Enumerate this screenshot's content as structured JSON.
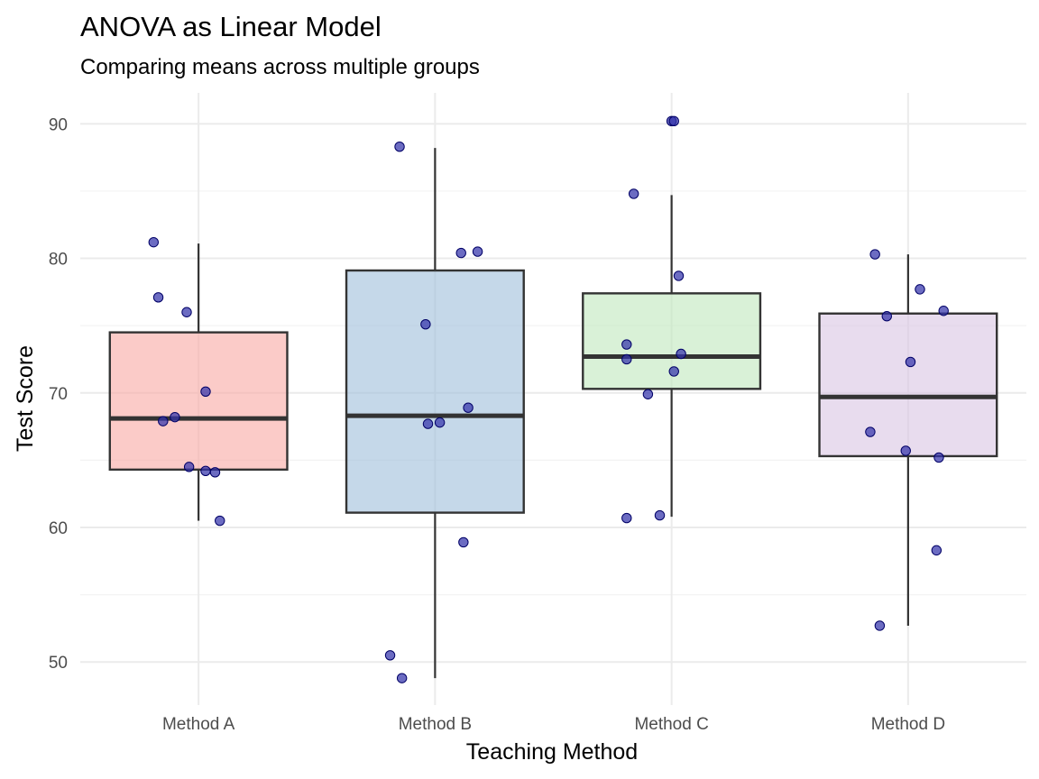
{
  "chart_data": {
    "type": "box",
    "title": "ANOVA as Linear Model",
    "subtitle": "Comparing means across multiple groups",
    "xlabel": "Teaching Method",
    "ylabel": "Test Score",
    "ylim": [
      46.8,
      92.3
    ],
    "y_ticks": [
      50,
      60,
      70,
      80,
      90
    ],
    "grid": true,
    "legend": "none",
    "point_color": "#3333aa",
    "groups": [
      {
        "name": "Method A",
        "fill": "#f8a9a3",
        "min": 60.5,
        "q1": 64.3,
        "median": 68.1,
        "q3": 74.5,
        "max": 81.1,
        "points": [
          {
            "dx": -0.19,
            "y": 81.2
          },
          {
            "dx": -0.17,
            "y": 77.1
          },
          {
            "dx": -0.05,
            "y": 76.0
          },
          {
            "dx": 0.03,
            "y": 70.1
          },
          {
            "dx": -0.15,
            "y": 67.9
          },
          {
            "dx": -0.1,
            "y": 68.2
          },
          {
            "dx": -0.04,
            "y": 64.5
          },
          {
            "dx": 0.03,
            "y": 64.2
          },
          {
            "dx": 0.07,
            "y": 64.1
          },
          {
            "dx": 0.09,
            "y": 60.5
          }
        ]
      },
      {
        "name": "Method B",
        "fill": "#9fbedb",
        "min": 48.8,
        "q1": 61.1,
        "median": 68.3,
        "q3": 79.1,
        "max": 88.2,
        "points": [
          {
            "dx": -0.15,
            "y": 88.3
          },
          {
            "dx": 0.11,
            "y": 80.4
          },
          {
            "dx": 0.18,
            "y": 80.5
          },
          {
            "dx": -0.04,
            "y": 75.1
          },
          {
            "dx": 0.14,
            "y": 68.9
          },
          {
            "dx": -0.03,
            "y": 67.7
          },
          {
            "dx": 0.02,
            "y": 67.8
          },
          {
            "dx": 0.12,
            "y": 58.9
          },
          {
            "dx": -0.19,
            "y": 50.5
          },
          {
            "dx": -0.14,
            "y": 48.8
          }
        ]
      },
      {
        "name": "Method C",
        "fill": "#bfe8bd",
        "min": 60.8,
        "q1": 70.3,
        "median": 72.7,
        "q3": 77.4,
        "max": 84.7,
        "points": [
          {
            "dx": -0.0,
            "y": 90.2
          },
          {
            "dx": 0.01,
            "y": 90.2
          },
          {
            "dx": -0.16,
            "y": 84.8
          },
          {
            "dx": 0.03,
            "y": 78.7
          },
          {
            "dx": -0.19,
            "y": 73.6
          },
          {
            "dx": -0.19,
            "y": 72.5
          },
          {
            "dx": 0.04,
            "y": 72.9
          },
          {
            "dx": 0.01,
            "y": 71.6
          },
          {
            "dx": -0.1,
            "y": 69.9
          },
          {
            "dx": -0.19,
            "y": 60.7
          },
          {
            "dx": -0.05,
            "y": 60.9
          }
        ]
      },
      {
        "name": "Method D",
        "fill": "#d8c4e3",
        "min": 52.7,
        "q1": 65.3,
        "median": 69.7,
        "q3": 75.9,
        "max": 80.3,
        "points": [
          {
            "dx": -0.14,
            "y": 80.3
          },
          {
            "dx": 0.05,
            "y": 77.7
          },
          {
            "dx": -0.09,
            "y": 75.7
          },
          {
            "dx": 0.15,
            "y": 76.1
          },
          {
            "dx": 0.01,
            "y": 72.3
          },
          {
            "dx": -0.16,
            "y": 67.1
          },
          {
            "dx": -0.01,
            "y": 65.7
          },
          {
            "dx": 0.13,
            "y": 65.2
          },
          {
            "dx": 0.12,
            "y": 58.3
          },
          {
            "dx": -0.12,
            "y": 52.7
          }
        ]
      }
    ]
  }
}
